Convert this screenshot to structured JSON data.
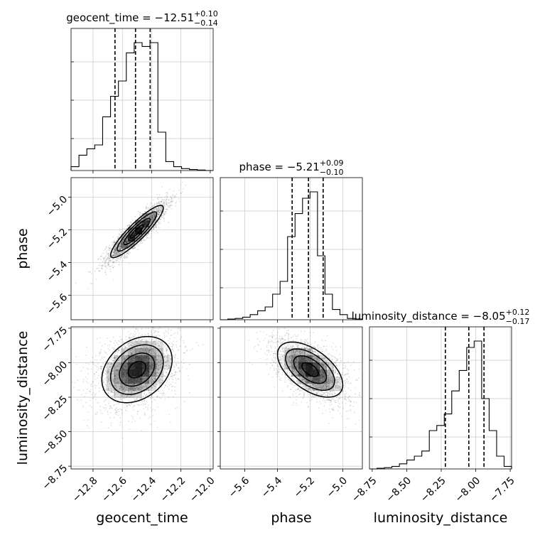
{
  "chart_data": {
    "type": "corner",
    "parameters": [
      {
        "name": "geocent_time",
        "median": "−12.51",
        "upper": "+0.10",
        "lower": "−0.14",
        "range": [
          -12.95,
          -11.98
        ],
        "ticks": [
          -12.8,
          -12.6,
          -12.4,
          -12.2,
          -12.0
        ],
        "tick_labels": [
          "−12.8",
          "−12.6",
          "−12.4",
          "−12.2",
          "−12.0"
        ],
        "quantiles": [
          -12.65,
          -12.51,
          -12.41
        ],
        "histogram": [
          0.03,
          0.12,
          0.17,
          0.2,
          0.42,
          0.58,
          0.7,
          0.92,
          1.0,
          0.97,
          1.0,
          0.3,
          0.07,
          0.03,
          0.015,
          0.008,
          0.004,
          0.0
        ]
      },
      {
        "name": "phase",
        "median": "−5.21",
        "upper": "+0.09",
        "lower": "−0.10",
        "range": [
          -5.75,
          -4.88
        ],
        "ticks": [
          -5.6,
          -5.4,
          -5.2,
          -5.0
        ],
        "tick_labels": [
          "−5.6",
          "−5.4",
          "−5.2",
          "−5.0"
        ],
        "quantiles": [
          -5.31,
          -5.21,
          -5.12
        ],
        "histogram": [
          0.0,
          0.005,
          0.01,
          0.02,
          0.04,
          0.07,
          0.1,
          0.2,
          0.3,
          0.65,
          0.83,
          0.95,
          1.0,
          0.5,
          0.2,
          0.08,
          0.04,
          0.01,
          0.005
        ]
      },
      {
        "name": "luminosity_distance",
        "median": "−8.05",
        "upper": "+0.12",
        "lower": "−0.17",
        "range": [
          -8.77,
          -7.74
        ],
        "ticks": [
          -8.75,
          -8.5,
          -8.25,
          -8.0,
          -7.75
        ],
        "tick_labels": [
          "−8.75",
          "−8.50",
          "−8.25",
          "−8.00",
          "−7.75"
        ],
        "quantiles": [
          -8.22,
          -8.05,
          -7.94
        ],
        "histogram": [
          0.0,
          0.005,
          0.01,
          0.02,
          0.04,
          0.07,
          0.1,
          0.14,
          0.3,
          0.34,
          0.43,
          0.61,
          0.77,
          0.95,
          1.0,
          0.55,
          0.3,
          0.1,
          0.02
        ]
      }
    ],
    "pairs": [
      {
        "x": "geocent_time",
        "y": "phase",
        "center": [
          -12.5,
          -5.21
        ],
        "sigma": [
          0.09,
          0.08
        ],
        "correlation": 0.9
      },
      {
        "x": "geocent_time",
        "y": "luminosity_distance",
        "center": [
          -12.5,
          -8.05
        ],
        "sigma": [
          0.12,
          0.12
        ],
        "correlation": 0.3
      },
      {
        "x": "phase",
        "y": "luminosity_distance",
        "center": [
          -5.2,
          -8.05
        ],
        "sigma": [
          0.1,
          0.1
        ],
        "correlation": -0.55
      }
    ],
    "grid": true
  }
}
